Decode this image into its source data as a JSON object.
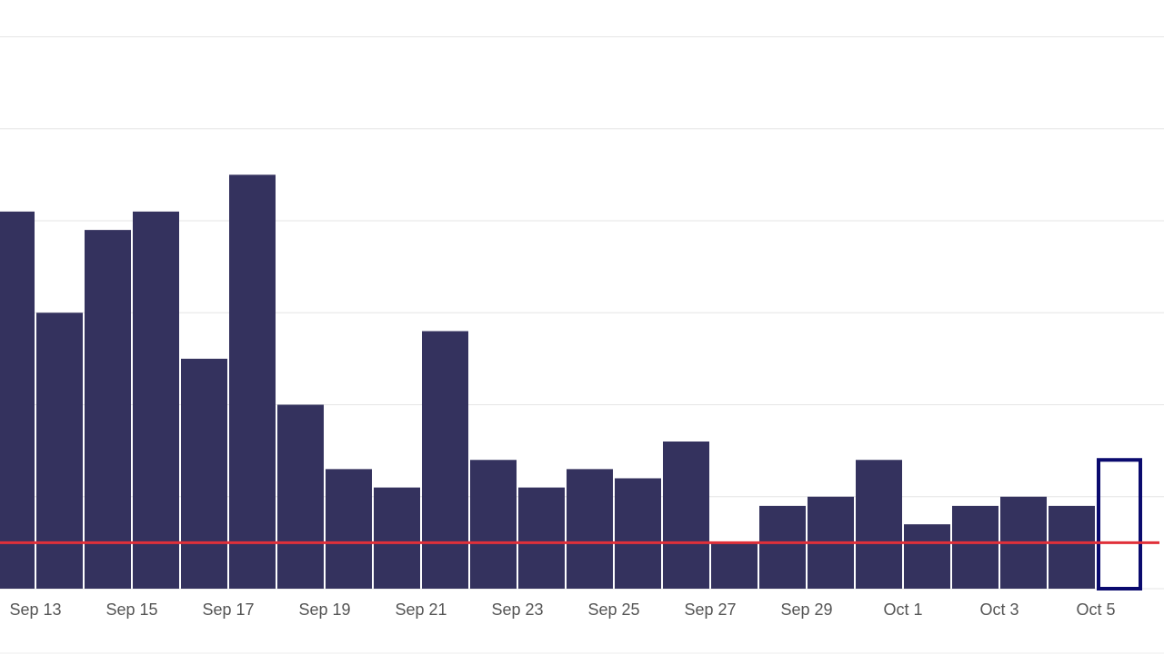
{
  "chart_data": {
    "type": "bar",
    "categories": [
      null,
      "Sep 13",
      null,
      "Sep 15",
      null,
      "Sep 17",
      null,
      "Sep 19",
      null,
      "Sep 21",
      null,
      "Sep 23",
      null,
      "Sep 25",
      null,
      "Sep 27",
      null,
      "Sep 29",
      null,
      "Oct 1",
      null,
      "Oct 3",
      null,
      "Oct 5"
    ],
    "series": [
      {
        "color": "#34325e",
        "style": "fill",
        "values": [
          41,
          30,
          39,
          41,
          25,
          45,
          20,
          13,
          11,
          28,
          14,
          11,
          13,
          12,
          16,
          5,
          9,
          10,
          14,
          7,
          9,
          10,
          9,
          null
        ]
      },
      {
        "color": "#0a0a6e",
        "style": "outline",
        "values": [
          null,
          null,
          null,
          null,
          null,
          null,
          null,
          null,
          null,
          null,
          null,
          null,
          null,
          null,
          null,
          null,
          null,
          null,
          null,
          null,
          null,
          null,
          null,
          14
        ]
      }
    ],
    "ylim": [
      0,
      64
    ],
    "yticks": [
      0,
      10,
      20,
      30,
      40,
      50,
      60
    ],
    "grid": true,
    "reference_line": {
      "value": 5,
      "color": "#e0303a"
    }
  }
}
